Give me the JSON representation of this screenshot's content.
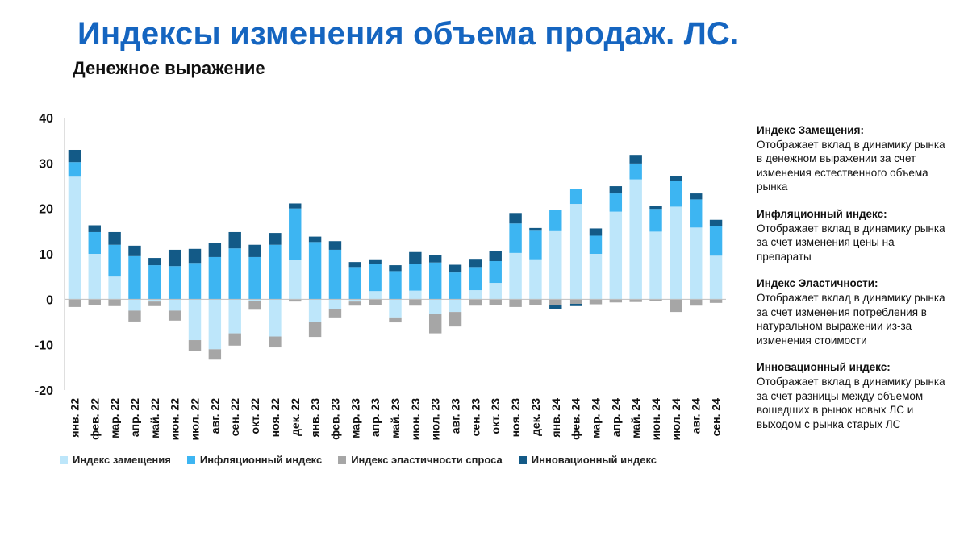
{
  "header": {
    "title": "Индексы изменения объема продаж. ЛС.",
    "subtitle": "Денежное выражение"
  },
  "colors": {
    "replacement": "#BDE6FA",
    "inflation": "#3DB5F2",
    "elasticity": "#A6A6A6",
    "innovation": "#135A87"
  },
  "notes": [
    {
      "title": "Индекс Замещения:",
      "text": "Отображает вклад в динамику рынка в денежном выражении за счет изменения естественного объема рынка"
    },
    {
      "title": "Инфляционный индекс:",
      "text": "Отображает вклад в динамику рынка за счет изменения цены на препараты"
    },
    {
      "title": "Индекс Эластичности:",
      "text": "Отображает вклад в динамику рынка за счет изменения потребления в натуральном выражении из-за изменения стоимости"
    },
    {
      "title": "Инновационный индекс:",
      "text": "Отображает вклад в динамику рынка за счет разницы между объемом вошедших в рынок новых ЛС и выходом с рынка старых ЛС"
    }
  ],
  "chart_data": {
    "type": "bar",
    "stacked": true,
    "categories": [
      "янв. 22",
      "фев. 22",
      "мар. 22",
      "апр. 22",
      "май. 22",
      "июн. 22",
      "июл. 22",
      "авг. 22",
      "сен. 22",
      "окт. 22",
      "ноя. 22",
      "дек. 22",
      "янв. 23",
      "фев. 23",
      "мар. 23",
      "апр. 23",
      "май. 23",
      "июн. 23",
      "июл. 23",
      "авг. 23",
      "сен. 23",
      "окт. 23",
      "ноя. 23",
      "дек. 23",
      "янв. 24",
      "фев. 24",
      "мар. 24",
      "апр. 24",
      "май. 24",
      "июн. 24",
      "июл. 24",
      "авг. 24",
      "сен. 24"
    ],
    "series": [
      {
        "name": "Индекс замещения",
        "color": "#BDE6FA",
        "values": [
          27,
          10,
          5,
          -2.5,
          -0.5,
          -2.5,
          -9,
          -11,
          -7.5,
          -0.3,
          -8.2,
          8.7,
          -5,
          -2.2,
          -0.5,
          1.8,
          -4,
          1.9,
          -3.2,
          -2.8,
          2,
          3.6,
          10.2,
          8.8,
          15,
          21,
          10,
          19.3,
          26.4,
          14.9,
          20.4,
          15.8,
          9.6
        ]
      },
      {
        "name": "Инфляционный индекс",
        "color": "#3DB5F2",
        "values": [
          3.2,
          4.8,
          7,
          9.5,
          7.5,
          7.3,
          8,
          9.3,
          11.2,
          9.3,
          12,
          11.3,
          12.6,
          10.9,
          7.1,
          5.9,
          6.2,
          5.8,
          8.1,
          5.9,
          5.1,
          4.8,
          6.5,
          6.3,
          4.7,
          3.3,
          4,
          4,
          3.5,
          5,
          5.7,
          6.2,
          6.5
        ]
      },
      {
        "name": "Индекс эластичности спроса",
        "color": "#A6A6A6",
        "values": [
          -1.7,
          -1.2,
          -1.5,
          -2.4,
          -1,
          -2.2,
          -2.3,
          -2.3,
          -2.7,
          -2,
          -2.4,
          -0.5,
          -3.3,
          -1.8,
          -0.9,
          -1.2,
          -1.1,
          -1.4,
          -4.3,
          -3.2,
          -1.4,
          -1.3,
          -1.7,
          -1.3,
          -1.3,
          -1,
          -1.1,
          -0.7,
          -0.6,
          -0.3,
          -2.8,
          -1.4,
          -0.8
        ]
      },
      {
        "name": "Инновационный индекс",
        "color": "#135A87",
        "values": [
          2.7,
          1.5,
          2.8,
          2.3,
          1.6,
          3.6,
          3.1,
          3.1,
          3.6,
          2.7,
          2.6,
          1.1,
          1.2,
          1.9,
          1.1,
          1.1,
          1.3,
          2.7,
          1.6,
          1.7,
          1.8,
          2.2,
          2.3,
          0.6,
          -0.9,
          -0.5,
          1.6,
          1.6,
          1.9,
          0.6,
          1,
          1.3,
          1.4
        ]
      }
    ],
    "ylim": [
      -20,
      40
    ],
    "yticks": [
      -20,
      -10,
      0,
      10,
      20,
      30,
      40
    ],
    "legend_position": "bottom-left"
  }
}
